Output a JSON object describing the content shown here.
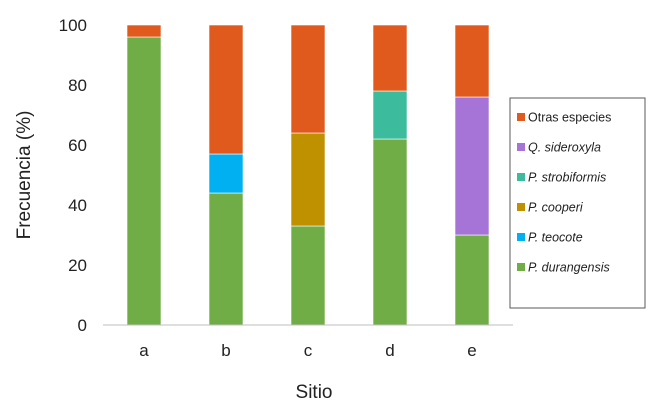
{
  "chart_data": {
    "type": "bar",
    "stacked": true,
    "categories": [
      "a",
      "b",
      "c",
      "d",
      "e"
    ],
    "xlabel": "Sitio",
    "ylabel": "Frecuencia (%)",
    "ylim": [
      0,
      100
    ],
    "yticks": [
      "0",
      "20",
      "40",
      "60",
      "80",
      "100"
    ],
    "grid": false,
    "legend_position": "right",
    "series": [
      {
        "name": "P. durangensis",
        "color": "#70ad47",
        "italic": true,
        "values": [
          96,
          44,
          33,
          62,
          30
        ]
      },
      {
        "name": "P. teocote",
        "color": "#00b0f0",
        "italic": true,
        "values": [
          0,
          13,
          0,
          0,
          0
        ]
      },
      {
        "name": "P. cooperi",
        "color": "#bf9000",
        "italic": true,
        "values": [
          0,
          0,
          31,
          0,
          0
        ]
      },
      {
        "name": "P. strobiformis",
        "color": "#3cbc9c",
        "italic": true,
        "values": [
          0,
          0,
          0,
          16,
          0
        ]
      },
      {
        "name": "Q. sideroxyla",
        "color": "#a674d6",
        "italic": true,
        "values": [
          0,
          0,
          0,
          0,
          46
        ]
      },
      {
        "name": "Otras especies",
        "color": "#e05a1e",
        "italic": false,
        "values": [
          4,
          43,
          36,
          22,
          24
        ]
      }
    ]
  }
}
